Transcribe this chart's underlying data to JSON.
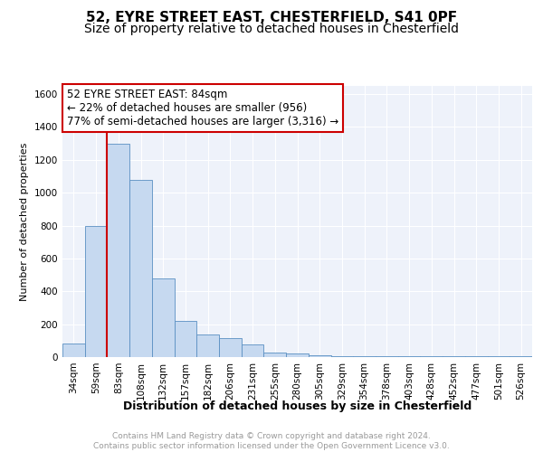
{
  "title": "52, EYRE STREET EAST, CHESTERFIELD, S41 0PF",
  "subtitle": "Size of property relative to detached houses in Chesterfield",
  "xlabel": "Distribution of detached houses by size in Chesterfield",
  "ylabel": "Number of detached properties",
  "categories": [
    "34sqm",
    "59sqm",
    "83sqm",
    "108sqm",
    "132sqm",
    "157sqm",
    "182sqm",
    "206sqm",
    "231sqm",
    "255sqm",
    "280sqm",
    "305sqm",
    "329sqm",
    "354sqm",
    "378sqm",
    "403sqm",
    "428sqm",
    "452sqm",
    "477sqm",
    "501sqm",
    "526sqm"
  ],
  "values": [
    80,
    800,
    1300,
    1080,
    480,
    220,
    140,
    115,
    75,
    30,
    20,
    10,
    8,
    5,
    5,
    5,
    5,
    5,
    5,
    5,
    5
  ],
  "bar_color": "#c6d9f0",
  "bar_edge_color": "#5a8fc2",
  "property_line_x": 1.5,
  "property_line_color": "#cc0000",
  "annotation_text": "52 EYRE STREET EAST: 84sqm\n← 22% of detached houses are smaller (956)\n77% of semi-detached houses are larger (3,316) →",
  "annotation_box_color": "#ffffff",
  "annotation_box_edge_color": "#cc0000",
  "ylim": [
    0,
    1650
  ],
  "yticks": [
    0,
    200,
    400,
    600,
    800,
    1000,
    1200,
    1400,
    1600
  ],
  "background_color": "#eef2fa",
  "grid_color": "#ffffff",
  "footer_text": "Contains HM Land Registry data © Crown copyright and database right 2024.\nContains public sector information licensed under the Open Government Licence v3.0.",
  "title_fontsize": 11,
  "subtitle_fontsize": 10,
  "xlabel_fontsize": 9,
  "ylabel_fontsize": 8,
  "tick_fontsize": 7.5,
  "annotation_fontsize": 8.5,
  "footer_fontsize": 6.5
}
